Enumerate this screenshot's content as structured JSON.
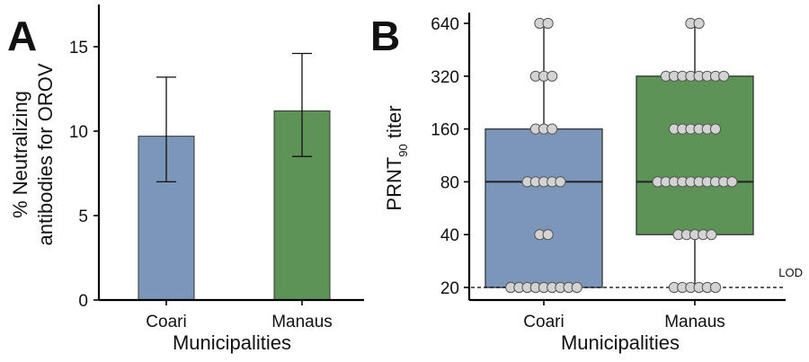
{
  "chart_data": [
    {
      "panel_label": "A",
      "type": "bar",
      "categories": [
        "Coari",
        "Manaus"
      ],
      "values": [
        9.7,
        11.2
      ],
      "error_low": [
        7.0,
        8.5
      ],
      "error_high": [
        13.2,
        14.6
      ],
      "colors": [
        "#7b96b8",
        "#5e9358"
      ],
      "xlabel": "Municipalities",
      "ylabel_line1": "% Neutralizing",
      "ylabel_line2": "antibodies for OROV",
      "ylim": [
        0,
        17.5
      ],
      "yticks": [
        0,
        5,
        10,
        15
      ],
      "grid": false
    },
    {
      "panel_label": "B",
      "type": "box",
      "scale": "log2",
      "categories": [
        "Coari",
        "Manaus"
      ],
      "colors": [
        "#7b96b8",
        "#5e9358"
      ],
      "xlabel": "Municipalities",
      "ylabel_main": "PRNT",
      "ylabel_sub": "90",
      "ylabel_tail": " titer",
      "ylim": [
        17,
        760
      ],
      "yticks": [
        20,
        40,
        80,
        160,
        320,
        640
      ],
      "lod_value": 20,
      "lod_label": "LOD",
      "boxes": [
        {
          "q1": 20,
          "median": 80,
          "q3": 160,
          "whisker_low": 20,
          "whisker_high": 640
        },
        {
          "q1": 40,
          "median": 80,
          "q3": 320,
          "whisker_low": 20,
          "whisker_high": 640
        }
      ],
      "points": [
        [
          {
            "y": 640,
            "n": 2
          },
          {
            "y": 320,
            "n": 3
          },
          {
            "y": 160,
            "n": 3
          },
          {
            "y": 80,
            "n": 5
          },
          {
            "y": 40,
            "n": 2
          },
          {
            "y": 20,
            "n": 9
          }
        ],
        [
          {
            "y": 640,
            "n": 2
          },
          {
            "y": 320,
            "n": 8
          },
          {
            "y": 160,
            "n": 6
          },
          {
            "y": 80,
            "n": 10
          },
          {
            "y": 40,
            "n": 5
          },
          {
            "y": 20,
            "n": 6
          }
        ]
      ],
      "grid": false
    }
  ]
}
